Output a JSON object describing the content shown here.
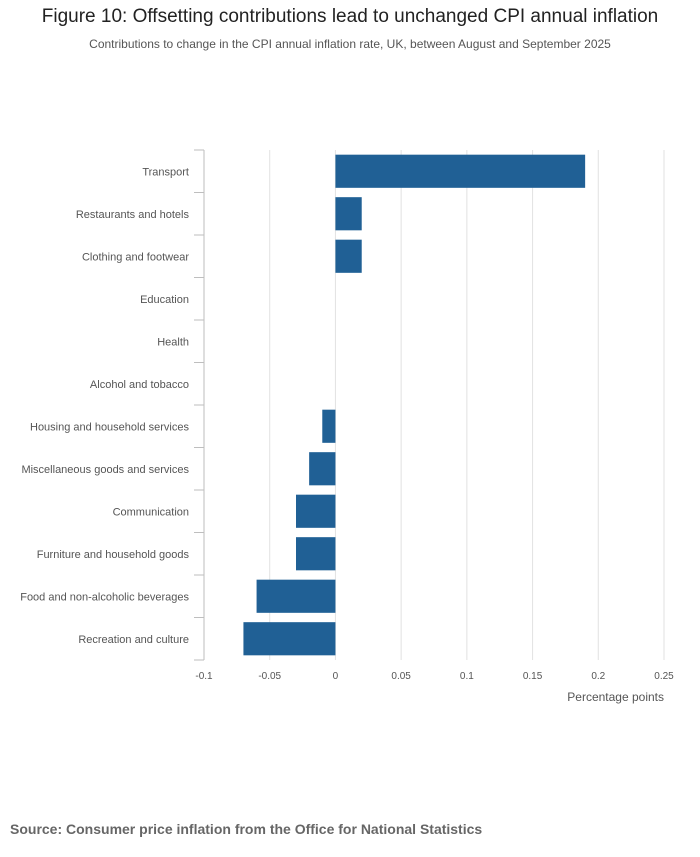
{
  "header": {
    "title": "Figure 10: Offsetting contributions lead to unchanged CPI annual inflation",
    "subtitle": "Contributions to change in the CPI annual inflation rate, UK, between August and September 2025"
  },
  "footer": {
    "source": "Source: Consumer price inflation from the Office for National Statistics"
  },
  "chart_data": {
    "type": "bar",
    "orientation": "horizontal",
    "categories": [
      "Transport",
      "Restaurants and hotels",
      "Clothing and footwear",
      "Education",
      "Health",
      "Alcohol and tobacco",
      "Housing and household services",
      "Miscellaneous goods and services",
      "Communication",
      "Furniture and household goods",
      "Food and non-alcoholic beverages",
      "Recreation and culture"
    ],
    "values": [
      0.19,
      0.02,
      0.02,
      0,
      0,
      0,
      -0.01,
      -0.02,
      -0.03,
      -0.03,
      -0.06,
      -0.07
    ],
    "xlabel": "Percentage points",
    "ylabel": "",
    "xlim": [
      -0.1,
      0.25
    ],
    "xticks": [
      -0.1,
      -0.05,
      0,
      0.05,
      0.1,
      0.15,
      0.2,
      0.25
    ],
    "xtick_labels": [
      "-0.1",
      "-0.05",
      "0",
      "0.05",
      "0.1",
      "0.15",
      "0.2",
      "0.25"
    ],
    "grid": true,
    "bar_color": "#206095",
    "grid_color": "#e2e2e2",
    "axis_color": "#bebebe"
  }
}
